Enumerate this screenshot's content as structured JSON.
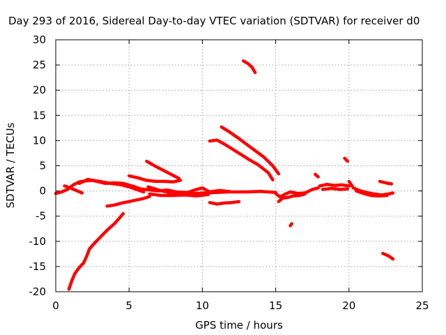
{
  "chart_data": {
    "type": "scatter",
    "title": "Day 293 of 2016, Sidereal Day-to-day VTEC variation (SDTVAR) for receiver d0",
    "xlabel": "GPS time / hours",
    "ylabel": "SDTVAR / TECUs",
    "xlim": [
      0,
      25
    ],
    "ylim": [
      -20,
      30
    ],
    "xticks": [
      0,
      5,
      10,
      15,
      20,
      25
    ],
    "yticks": [
      -20,
      -15,
      -10,
      -5,
      0,
      5,
      10,
      15,
      20,
      25,
      30
    ],
    "grid": true,
    "legend": "none",
    "color": "#ff0000",
    "series": [
      {
        "points": [
          [
            0.0,
            -0.5
          ],
          [
            0.4,
            -0.2
          ],
          [
            0.8,
            0.3
          ],
          [
            1.2,
            1.2
          ],
          [
            1.6,
            1.8
          ],
          [
            2.0,
            2.0
          ],
          [
            2.5,
            2.1
          ],
          [
            3.0,
            1.9
          ],
          [
            3.5,
            1.6
          ],
          [
            4.0,
            1.4
          ],
          [
            4.5,
            1.2
          ],
          [
            5.0,
            0.8
          ],
          [
            5.5,
            0.3
          ],
          [
            6.0,
            -0.2
          ]
        ]
      },
      {
        "points": [
          [
            0.6,
            1.0
          ],
          [
            1.0,
            0.6
          ],
          [
            1.4,
            0.1
          ],
          [
            1.8,
            -0.4
          ]
        ]
      },
      {
        "points": [
          [
            1.6,
            1.5
          ],
          [
            2.2,
            2.3
          ],
          [
            2.8,
            1.9
          ],
          [
            3.4,
            1.5
          ],
          [
            4.0,
            1.6
          ],
          [
            4.6,
            1.5
          ],
          [
            5.2,
            1.0
          ],
          [
            5.8,
            0.4
          ],
          [
            6.4,
            0.2
          ],
          [
            7.0,
            0.0
          ],
          [
            7.6,
            0.2
          ],
          [
            8.2,
            -0.2
          ],
          [
            9.0,
            -0.3
          ],
          [
            9.6,
            0.3
          ],
          [
            10.0,
            0.6
          ],
          [
            10.5,
            -0.2
          ],
          [
            11.2,
            0.1
          ],
          [
            12.0,
            -0.2
          ],
          [
            13.0,
            -0.2
          ],
          [
            14.0,
            -0.1
          ],
          [
            15.0,
            -0.3
          ]
        ]
      },
      {
        "points": [
          [
            6.3,
            0.8
          ],
          [
            7.0,
            0.2
          ],
          [
            7.8,
            -0.4
          ],
          [
            8.6,
            -0.6
          ],
          [
            9.4,
            -0.5
          ],
          [
            10.2,
            -0.4
          ],
          [
            11.0,
            -0.3
          ],
          [
            11.8,
            -0.2
          ]
        ]
      },
      {
        "points": [
          [
            6.4,
            -0.6
          ],
          [
            7.2,
            -0.9
          ],
          [
            8.0,
            -0.9
          ],
          [
            8.8,
            -0.8
          ],
          [
            9.6,
            -1.0
          ],
          [
            10.4,
            -0.7
          ]
        ]
      },
      {
        "points": [
          [
            5.0,
            3.0
          ],
          [
            5.6,
            2.6
          ],
          [
            6.2,
            2.1
          ],
          [
            6.8,
            1.9
          ],
          [
            7.4,
            1.9
          ],
          [
            8.0,
            1.8
          ],
          [
            8.5,
            2.1
          ]
        ]
      },
      {
        "points": [
          [
            6.2,
            5.9
          ],
          [
            6.8,
            4.9
          ],
          [
            7.4,
            4.0
          ],
          [
            8.0,
            3.1
          ],
          [
            8.4,
            2.5
          ]
        ]
      },
      {
        "points": [
          [
            3.5,
            -3.0
          ],
          [
            4.0,
            -2.8
          ],
          [
            4.5,
            -2.4
          ],
          [
            5.0,
            -2.1
          ],
          [
            5.5,
            -1.8
          ],
          [
            6.0,
            -1.5
          ],
          [
            6.4,
            -1.1
          ]
        ]
      },
      {
        "points": [
          [
            0.9,
            -19.5
          ],
          [
            1.1,
            -17.8
          ],
          [
            1.3,
            -16.4
          ],
          [
            1.6,
            -15.2
          ],
          [
            1.9,
            -14.3
          ],
          [
            2.1,
            -13.0
          ],
          [
            2.3,
            -11.5
          ],
          [
            2.6,
            -10.5
          ],
          [
            3.0,
            -9.3
          ],
          [
            3.5,
            -7.8
          ],
          [
            4.0,
            -6.5
          ],
          [
            4.4,
            -5.2
          ],
          [
            4.6,
            -4.5
          ]
        ]
      },
      {
        "points": [
          [
            10.5,
            -2.3
          ],
          [
            11.0,
            -2.6
          ],
          [
            11.5,
            -2.4
          ],
          [
            12.0,
            -2.3
          ],
          [
            12.5,
            -2.1
          ]
        ]
      },
      {
        "points": [
          [
            10.5,
            9.9
          ],
          [
            11.0,
            10.1
          ],
          [
            11.5,
            9.3
          ],
          [
            12.0,
            8.4
          ],
          [
            12.6,
            7.3
          ],
          [
            13.2,
            6.2
          ],
          [
            13.8,
            5.2
          ],
          [
            14.5,
            3.6
          ],
          [
            14.8,
            2.2
          ]
        ]
      },
      {
        "points": [
          [
            11.3,
            12.7
          ],
          [
            11.8,
            11.8
          ],
          [
            12.4,
            10.6
          ],
          [
            13.0,
            9.3
          ],
          [
            13.6,
            8.0
          ],
          [
            14.2,
            6.7
          ],
          [
            14.8,
            5.0
          ],
          [
            15.2,
            3.4
          ]
        ]
      },
      {
        "points": [
          [
            12.8,
            25.8
          ],
          [
            13.1,
            25.3
          ],
          [
            13.4,
            24.5
          ],
          [
            13.6,
            23.5
          ]
        ]
      },
      {
        "points": [
          [
            15.0,
            -0.5
          ],
          [
            15.3,
            -1.2
          ],
          [
            15.6,
            -0.7
          ],
          [
            16.0,
            -0.2
          ],
          [
            16.5,
            -0.5
          ],
          [
            17.0,
            -0.4
          ],
          [
            17.5,
            0.3
          ],
          [
            17.9,
            0.6
          ]
        ]
      },
      {
        "points": [
          [
            15.2,
            -2.1
          ],
          [
            15.5,
            -1.4
          ],
          [
            15.8,
            -1.3
          ],
          [
            16.2,
            -1.0
          ],
          [
            16.6,
            -0.9
          ],
          [
            17.0,
            -0.6
          ]
        ]
      },
      {
        "points": [
          [
            16.0,
            -6.9
          ],
          [
            16.1,
            -6.5
          ]
        ]
      },
      {
        "points": [
          [
            17.7,
            3.3
          ],
          [
            17.9,
            2.8
          ]
        ]
      },
      {
        "points": [
          [
            18.0,
            1.0
          ],
          [
            18.5,
            1.3
          ],
          [
            19.0,
            1.1
          ],
          [
            19.5,
            1.2
          ],
          [
            20.0,
            1.0
          ]
        ]
      },
      {
        "points": [
          [
            18.2,
            0.3
          ],
          [
            18.8,
            0.5
          ],
          [
            19.4,
            0.3
          ],
          [
            19.9,
            0.4
          ]
        ]
      },
      {
        "points": [
          [
            19.7,
            6.5
          ],
          [
            19.9,
            5.9
          ]
        ]
      },
      {
        "points": [
          [
            20.0,
            1.9
          ],
          [
            20.3,
            0.6
          ],
          [
            20.7,
            0.1
          ],
          [
            21.2,
            -0.3
          ],
          [
            21.7,
            -0.6
          ],
          [
            22.2,
            -0.8
          ],
          [
            22.7,
            -0.6
          ],
          [
            23.0,
            -0.4
          ]
        ]
      },
      {
        "points": [
          [
            20.5,
            0.0
          ],
          [
            21.0,
            -0.5
          ],
          [
            21.5,
            -0.9
          ],
          [
            22.0,
            -1.0
          ],
          [
            22.6,
            -0.9
          ]
        ]
      },
      {
        "points": [
          [
            22.1,
            1.9
          ],
          [
            22.5,
            1.6
          ],
          [
            22.9,
            1.4
          ]
        ]
      },
      {
        "points": [
          [
            22.3,
            -12.4
          ],
          [
            22.7,
            -12.9
          ],
          [
            23.0,
            -13.5
          ]
        ]
      }
    ]
  }
}
